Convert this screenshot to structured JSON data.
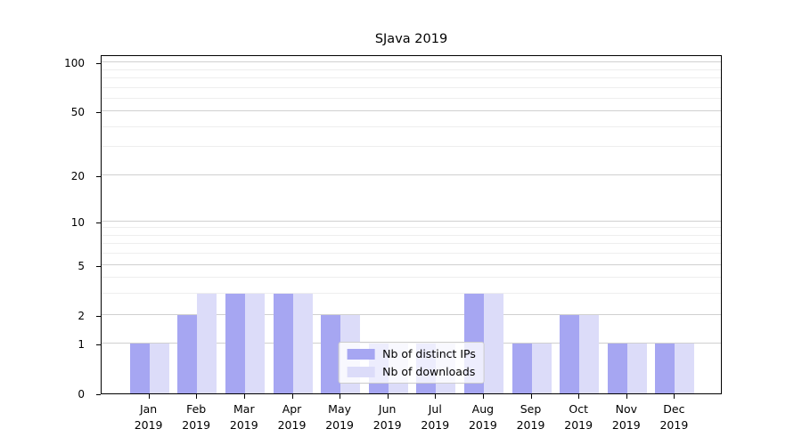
{
  "title": "SJava 2019",
  "chart_data": {
    "type": "bar",
    "title": "SJava 2019",
    "categories": [
      "Jan",
      "Feb",
      "Mar",
      "Apr",
      "May",
      "Jun",
      "Jul",
      "Aug",
      "Sep",
      "Oct",
      "Nov",
      "Dec"
    ],
    "category_year": "2019",
    "series": [
      {
        "name": "Nb of distinct IPs",
        "color": "#a6a6f2",
        "values": [
          1,
          2,
          3,
          3,
          2,
          1,
          1,
          3,
          1,
          2,
          1,
          1
        ]
      },
      {
        "name": "Nb of downloads",
        "color": "#dcdcf9",
        "values": [
          1,
          3,
          3,
          3,
          2,
          1,
          1,
          3,
          1,
          2,
          1,
          1
        ]
      }
    ],
    "xlabel": "",
    "ylabel": "",
    "yscale": "log1p",
    "ylim": [
      0,
      112
    ],
    "yticks_major": [
      0,
      1,
      2,
      5,
      10,
      20,
      50,
      100
    ],
    "yticks_minor": [
      3,
      4,
      6,
      7,
      8,
      9,
      30,
      40,
      60,
      70,
      80,
      90
    ],
    "grid": "horizontal",
    "legend_position": "lower-center-inside",
    "colors": {
      "grid_major": "#d0d0d0",
      "grid_minor": "#eeeeee",
      "spine": "#000000",
      "legend_border": "#cccccc"
    }
  }
}
